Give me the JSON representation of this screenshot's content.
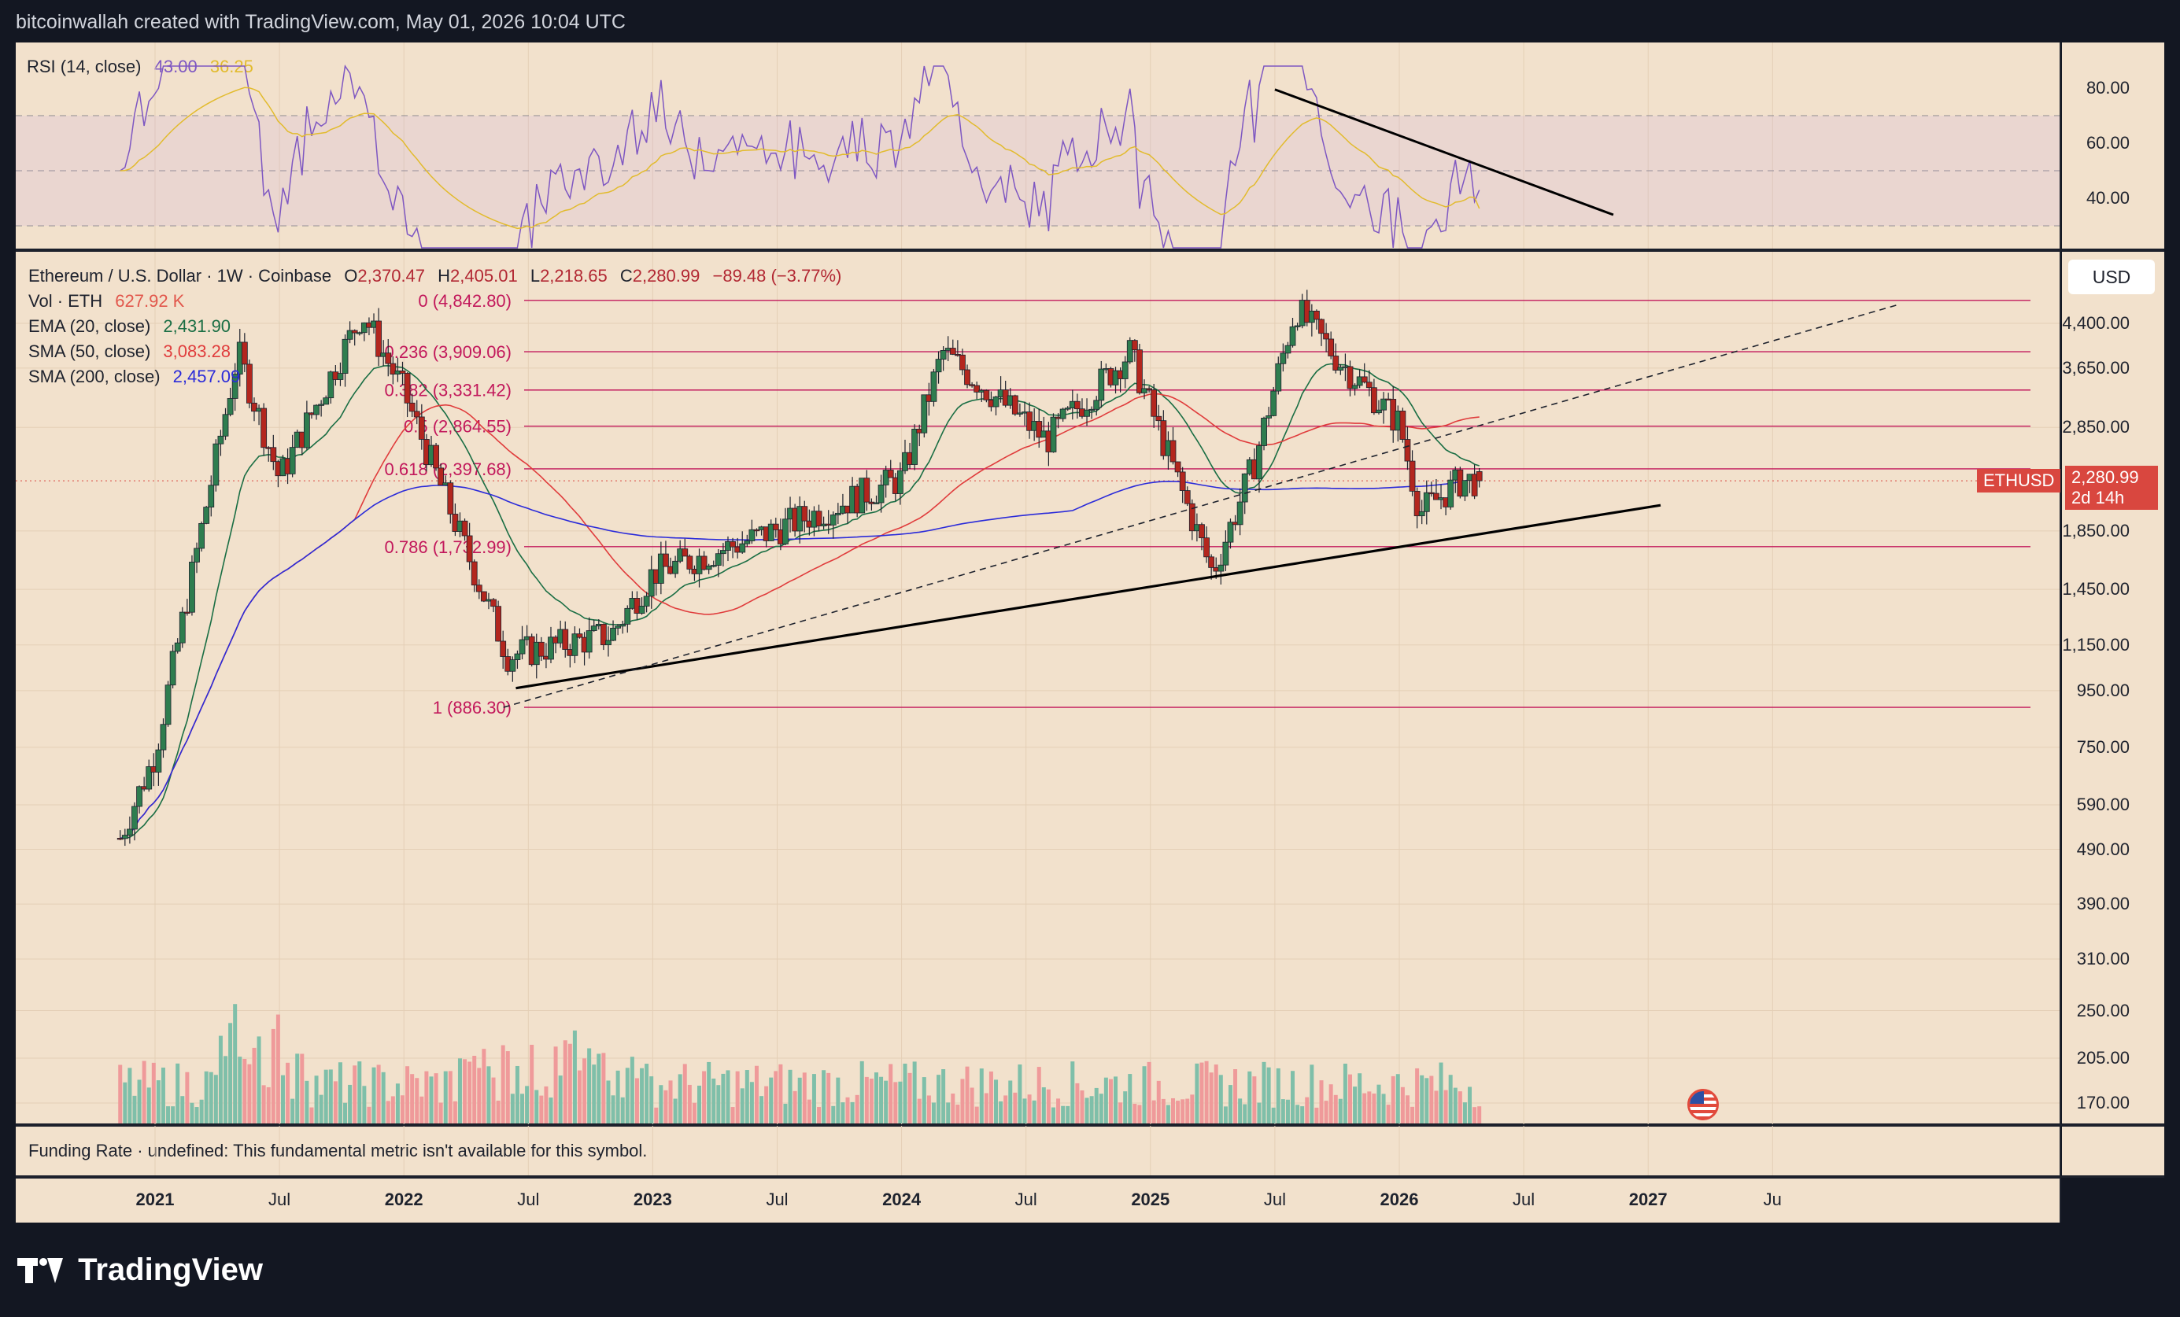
{
  "header": {
    "attribution": "bitcoinwallah created with TradingView.com, May 01, 2026 10:04 UTC"
  },
  "rsi": {
    "label": "RSI (14, close)",
    "value": "43.00",
    "ma_value": "36.25",
    "ticks": [
      "80.00",
      "60.00",
      "40.00"
    ]
  },
  "main": {
    "title": "Ethereum / U.S. Dollar · 1W · Coinbase",
    "ohlc": {
      "o_label": "O",
      "o": "2,370.47",
      "h_label": "H",
      "h": "2,405.01",
      "l_label": "L",
      "l": "2,218.65",
      "c_label": "C",
      "c": "2,280.99",
      "change": "−89.48 (−3.77%)"
    },
    "vol": {
      "label": "Vol · ETH",
      "value": "627.92 K"
    },
    "ema20": {
      "label": "EMA (20, close)",
      "value": "2,431.90",
      "color": "#1a6e44"
    },
    "sma50": {
      "label": "SMA (50, close)",
      "value": "3,083.28",
      "color": "#e03c3c"
    },
    "sma200": {
      "label": "SMA (200, close)",
      "value": "2,457.09",
      "color": "#2b2bd9"
    },
    "currency": "USD",
    "price_ticks": [
      "4,400.00",
      "3,650.00",
      "2,850.00",
      "1,850.00",
      "1,450.00",
      "1,150.00",
      "950.00",
      "750.00",
      "590.00",
      "490.00",
      "390.00",
      "310.00",
      "250.00",
      "205.00",
      "170.00"
    ],
    "symbol_tag": "ETHUSD",
    "price_tag": "2,280.99",
    "countdown_tag": "2d 14h"
  },
  "fib_levels": [
    {
      "label": "0 (4,842.80)",
      "price": 4842.8
    },
    {
      "label": "0.236 (3,909.06)",
      "price": 3909.06
    },
    {
      "label": "0.382 (3,331.42)",
      "price": 3331.42
    },
    {
      "label": "0.5 (2,864.55)",
      "price": 2864.55
    },
    {
      "label": "0.618 (2,397.68)",
      "price": 2397.68
    },
    {
      "label": "0.786 (1,732.99)",
      "price": 1732.99
    },
    {
      "label": "1 (886.30)",
      "price": 886.3
    }
  ],
  "funding": {
    "text": "Funding Rate · undefined: This fundamental metric isn't available for this symbol."
  },
  "x_axis": [
    "2021",
    "Jul",
    "2022",
    "Jul",
    "2023",
    "Jul",
    "2024",
    "Jul",
    "2025",
    "Jul",
    "2026",
    "Jul",
    "2027",
    "Ju"
  ],
  "brand": {
    "name": "TradingView"
  },
  "chart_data": {
    "type": "candlestick",
    "title": "Ethereum / U.S. Dollar · 1W · Coinbase",
    "y_scale": "log",
    "ylim": [
      150,
      5800
    ],
    "x": [
      "2020-11",
      "2021-01",
      "2021-05",
      "2021-07",
      "2021-11",
      "2022-01",
      "2022-06",
      "2022-11",
      "2023-01",
      "2023-06",
      "2024-01",
      "2024-03",
      "2024-08",
      "2024-12",
      "2025-04",
      "2025-06",
      "2025-08",
      "2025-10",
      "2026-01",
      "2026-02",
      "2026-04"
    ],
    "close": [
      480,
      730,
      3900,
      2300,
      4600,
      3300,
      1100,
      1200,
      1550,
      1800,
      2300,
      3900,
      2700,
      3900,
      1550,
      2450,
      4700,
      3800,
      2900,
      2000,
      2281
    ],
    "series": [
      {
        "name": "EMA (20, close)",
        "last": 2431.9
      },
      {
        "name": "SMA (50, close)",
        "last": 3083.28
      },
      {
        "name": "SMA (200, close)",
        "last": 2457.09
      }
    ],
    "fib_retracement": [
      4842.8,
      3909.06,
      3331.42,
      2864.55,
      2397.68,
      1732.99,
      886.3
    ],
    "rsi": {
      "value": 43.0,
      "ma": 36.25,
      "ticks": [
        80,
        60,
        40
      ]
    },
    "legend": "top-left",
    "grid": true
  }
}
